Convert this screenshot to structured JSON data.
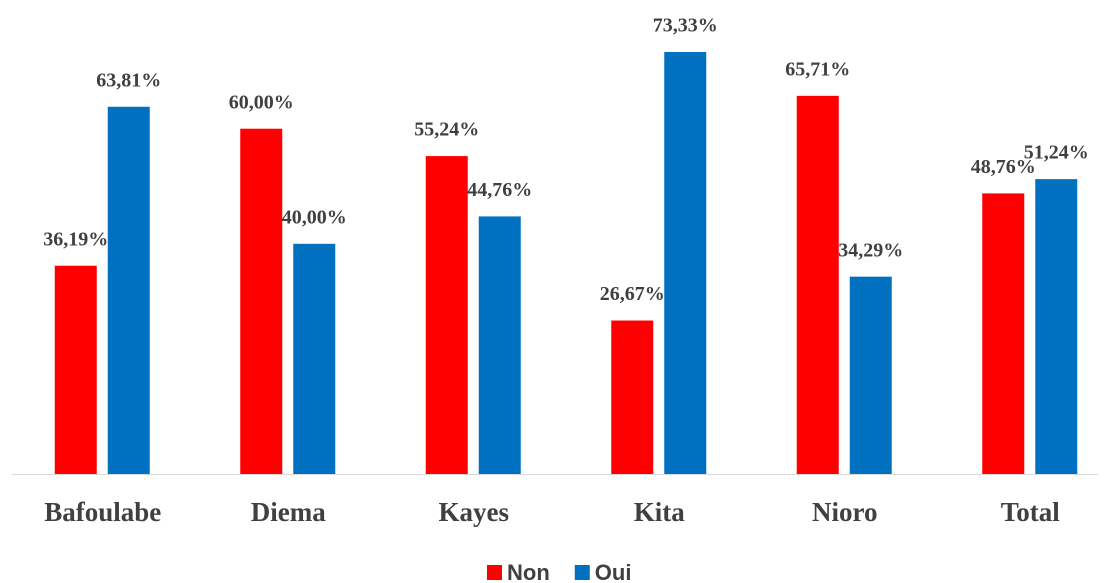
{
  "chart_data": {
    "type": "bar",
    "categories": [
      "Bafoulabe",
      "Diema",
      "Kayes",
      "Kita",
      "Nioro",
      "Total"
    ],
    "series": [
      {
        "name": "Non",
        "color": "#ff0000",
        "values": [
          36.19,
          60.0,
          55.24,
          26.67,
          65.71,
          48.76
        ],
        "value_labels": [
          "36,19%",
          "60,00%",
          "55,24%",
          "26,67%",
          "65,71%",
          "48,76%"
        ]
      },
      {
        "name": "Oui",
        "color": "#0070c0",
        "values": [
          63.81,
          40.0,
          44.76,
          73.33,
          34.29,
          51.24
        ],
        "value_labels": [
          "63,81%",
          "40,00%",
          "44,76%",
          "73,33%",
          "34,29%",
          "51,24%"
        ]
      }
    ],
    "legend": "bottom"
  }
}
